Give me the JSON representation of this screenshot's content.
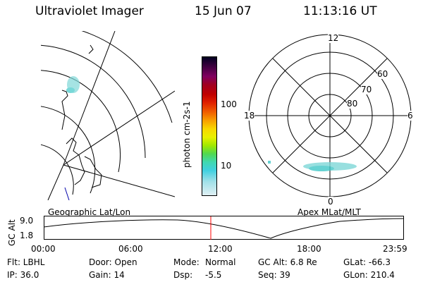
{
  "header": {
    "instrument": "Ultraviolet Imager",
    "date": "15 Jun 07",
    "time": "11:13:16 UT"
  },
  "colorbar": {
    "unit_label": "photon cm-2s-1",
    "ticks": [
      "100",
      "10"
    ],
    "colors": [
      "#000020",
      "#400040",
      "#800060",
      "#a00020",
      "#c00000",
      "#e02000",
      "#f06000",
      "#f8a000",
      "#f8d800",
      "#e8f000",
      "#a0e800",
      "#50d850",
      "#40d8b0",
      "#40d0e0",
      "#a0e0e8",
      "#e0f0f4"
    ]
  },
  "left_map": {
    "label": "Geographic Lat/Lon"
  },
  "right_map": {
    "label": "Apex MLat/MLT",
    "mlt_labels": {
      "top": "12",
      "left": "18",
      "right": "6",
      "bottom": "0"
    },
    "lat_labels": [
      "60",
      "70",
      "80"
    ]
  },
  "altitude_plot": {
    "ylabel": "GC Alt",
    "yticks": [
      "9.0",
      "1.8"
    ],
    "xticks": [
      "00:00",
      "06:00",
      "12:00",
      "18:00",
      "23:59"
    ],
    "marker_color": "#ff0000"
  },
  "info": {
    "col1": [
      "Flt: LBHL",
      "IP: 36.0"
    ],
    "col2": [
      "Door: Open",
      "Gain: 14"
    ],
    "col3_line1_label": "Mode:",
    "col3_line1_value": "Normal",
    "col3_line2_label": "Dsp:",
    "col3_line2_value": "-5.5",
    "col4": [
      "GC Alt: 6.8 Re",
      "Seq: 39"
    ],
    "col5": [
      "GLat: -66.3",
      "GLon: 210.4"
    ]
  }
}
